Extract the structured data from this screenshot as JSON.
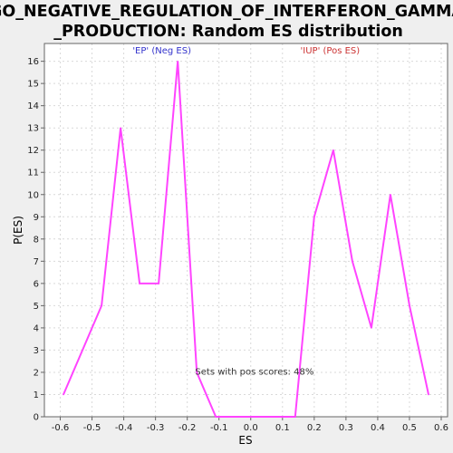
{
  "chart_data": {
    "type": "line",
    "title_line1": "GO_NEGATIVE_REGULATION_OF_INTERFERON_GAMMA",
    "title_line2": "_PRODUCTION: Random ES distribution",
    "xlabel": "ES",
    "ylabel": "P(ES)",
    "xlim": [
      -0.65,
      0.62
    ],
    "ylim": [
      0,
      16.8
    ],
    "x_ticks": [
      -0.6,
      -0.5,
      -0.4,
      -0.3,
      -0.2,
      -0.1,
      0.0,
      0.1,
      0.2,
      0.3,
      0.4,
      0.5,
      0.6
    ],
    "x_tick_labels": [
      "-0.6",
      "-0.5",
      "-0.4",
      "-0.3",
      "-0.2",
      "-0.1",
      "0.0",
      "0.1",
      "0.2",
      "0.3",
      "0.4",
      "0.5",
      "0.6"
    ],
    "y_ticks": [
      0,
      1,
      2,
      3,
      4,
      5,
      6,
      7,
      8,
      9,
      10,
      11,
      12,
      13,
      14,
      15,
      16
    ],
    "y_tick_labels": [
      "0",
      "1",
      "2",
      "3",
      "4",
      "5",
      "6",
      "7",
      "8",
      "9",
      "10",
      "11",
      "12",
      "13",
      "14",
      "15",
      "16"
    ],
    "grid": true,
    "series": [
      {
        "color": "#ff44ff",
        "x": [
          -0.59,
          -0.47,
          -0.41,
          -0.35,
          -0.29,
          -0.23,
          -0.17,
          -0.11,
          -0.04,
          0.02,
          0.08,
          0.14,
          0.2,
          0.26,
          0.32,
          0.38,
          0.44,
          0.5,
          0.56
        ],
        "y": [
          1,
          5,
          13,
          6,
          6,
          16,
          2,
          0,
          0,
          0,
          0,
          0,
          9,
          12,
          7,
          4,
          10,
          5,
          1
        ]
      }
    ],
    "annotations": {
      "neg_label": {
        "text": "'EP' (Neg ES)",
        "color": "#3333cc",
        "x": -0.28,
        "y": 16.35
      },
      "pos_label": {
        "text": "'IUP' (Pos ES)",
        "color": "#cc3333",
        "x": 0.25,
        "y": 16.35
      },
      "note": {
        "text": "Sets with pos scores: 48%",
        "color": "#333333",
        "x": -0.175,
        "y": 1.9
      }
    },
    "colors": {
      "plot_background": "#ffffff",
      "page_background": "#efefef",
      "grid": "#d9d9d9",
      "axis": "#666666"
    }
  }
}
